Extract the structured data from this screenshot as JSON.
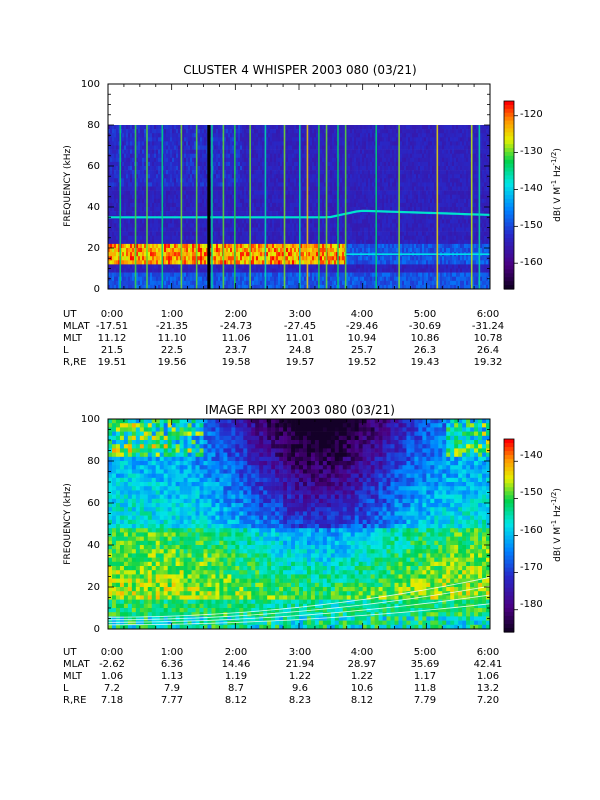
{
  "chart_data": [
    {
      "type": "heatmap",
      "title": "CLUSTER 4 WHISPER 2003 080 (03/21)",
      "ylabel": "FREQUENCY (kHz)",
      "ylim": [
        0,
        100
      ],
      "yticks": [
        "0",
        "20",
        "40",
        "60",
        "80",
        "100"
      ],
      "xlim": [
        "0:00",
        "6:00"
      ],
      "data_top_khz": 80,
      "colorbar": {
        "label": "dB( V M",
        "label_sup1": "-1",
        "label_mid": " Hz",
        "label_sup2": "-1/2",
        "label_end": ")",
        "range": [
          -167,
          -116
        ],
        "ticks": [
          "-120",
          "-130",
          "-140",
          "-150",
          "-160"
        ]
      },
      "features": {
        "low_band_khz": [
          12,
          22
        ],
        "emission_line_khz": 35,
        "upper_line_khz": 17
      },
      "ephemeris": {
        "row_labels": [
          "UT",
          "MLAT",
          "MLT",
          "L",
          "R,RE"
        ],
        "columns": [
          [
            "0:00",
            "-17.51",
            "11.12",
            "21.5",
            "19.51"
          ],
          [
            "1:00",
            "-21.35",
            "11.10",
            "22.5",
            "19.56"
          ],
          [
            "2:00",
            "-24.73",
            "11.06",
            "23.7",
            "19.58"
          ],
          [
            "3:00",
            "-27.45",
            "11.01",
            "24.8",
            "19.57"
          ],
          [
            "4:00",
            "-29.46",
            "10.94",
            "25.7",
            "19.52"
          ],
          [
            "5:00",
            "-30.69",
            "10.86",
            "26.3",
            "19.43"
          ],
          [
            "6:00",
            "-31.24",
            "10.78",
            "26.4",
            "19.32"
          ]
        ]
      }
    },
    {
      "type": "heatmap",
      "title": "IMAGE RPI XY 2003 080 (03/21)",
      "ylabel": "FREQUENCY (kHz)",
      "ylim": [
        0,
        100
      ],
      "yticks": [
        "0",
        "20",
        "40",
        "60",
        "80",
        "100"
      ],
      "xlim": [
        "0:00",
        "6:00"
      ],
      "colorbar": {
        "label": "dB( V M",
        "label_sup1": "-1",
        "label_mid": " Hz",
        "label_sup2": "-1/2",
        "label_end": ")",
        "range": [
          -186,
          -134
        ],
        "ticks": [
          "-140",
          "-150",
          "-160",
          "-170",
          "-180"
        ]
      },
      "ephemeris": {
        "row_labels": [
          "UT",
          "MLAT",
          "MLT",
          "L",
          "R,RE"
        ],
        "columns": [
          [
            "0:00",
            "-2.62",
            "1.06",
            "7.2",
            "7.18"
          ],
          [
            "1:00",
            "6.36",
            "1.13",
            "7.9",
            "7.77"
          ],
          [
            "2:00",
            "14.46",
            "1.19",
            "8.7",
            "8.12"
          ],
          [
            "3:00",
            "21.94",
            "1.22",
            "9.6",
            "8.23"
          ],
          [
            "4:00",
            "28.97",
            "1.22",
            "10.6",
            "8.12"
          ],
          [
            "5:00",
            "35.69",
            "1.17",
            "11.8",
            "7.79"
          ],
          [
            "6:00",
            "42.41",
            "1.06",
            "13.2",
            "7.20"
          ]
        ]
      }
    }
  ]
}
